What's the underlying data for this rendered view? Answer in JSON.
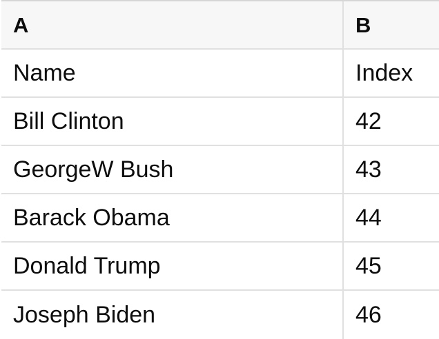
{
  "table": {
    "header": {
      "a": "A",
      "b": "B"
    },
    "rows": [
      {
        "a": "Name",
        "b": "Index"
      },
      {
        "a": "Bill Clinton",
        "b": "42"
      },
      {
        "a": "GeorgeW Bush",
        "b": "43"
      },
      {
        "a": "Barack Obama",
        "b": "44"
      },
      {
        "a": "Donald Trump",
        "b": "45"
      },
      {
        "a": "Joseph Biden",
        "b": "46"
      }
    ]
  },
  "colors": {
    "header_background": "#f7f7f7",
    "row_background": "#ffffff",
    "grid_line": "#e0e0e0",
    "top_border": "#d6d6d6",
    "text": "#0d0d0d"
  }
}
